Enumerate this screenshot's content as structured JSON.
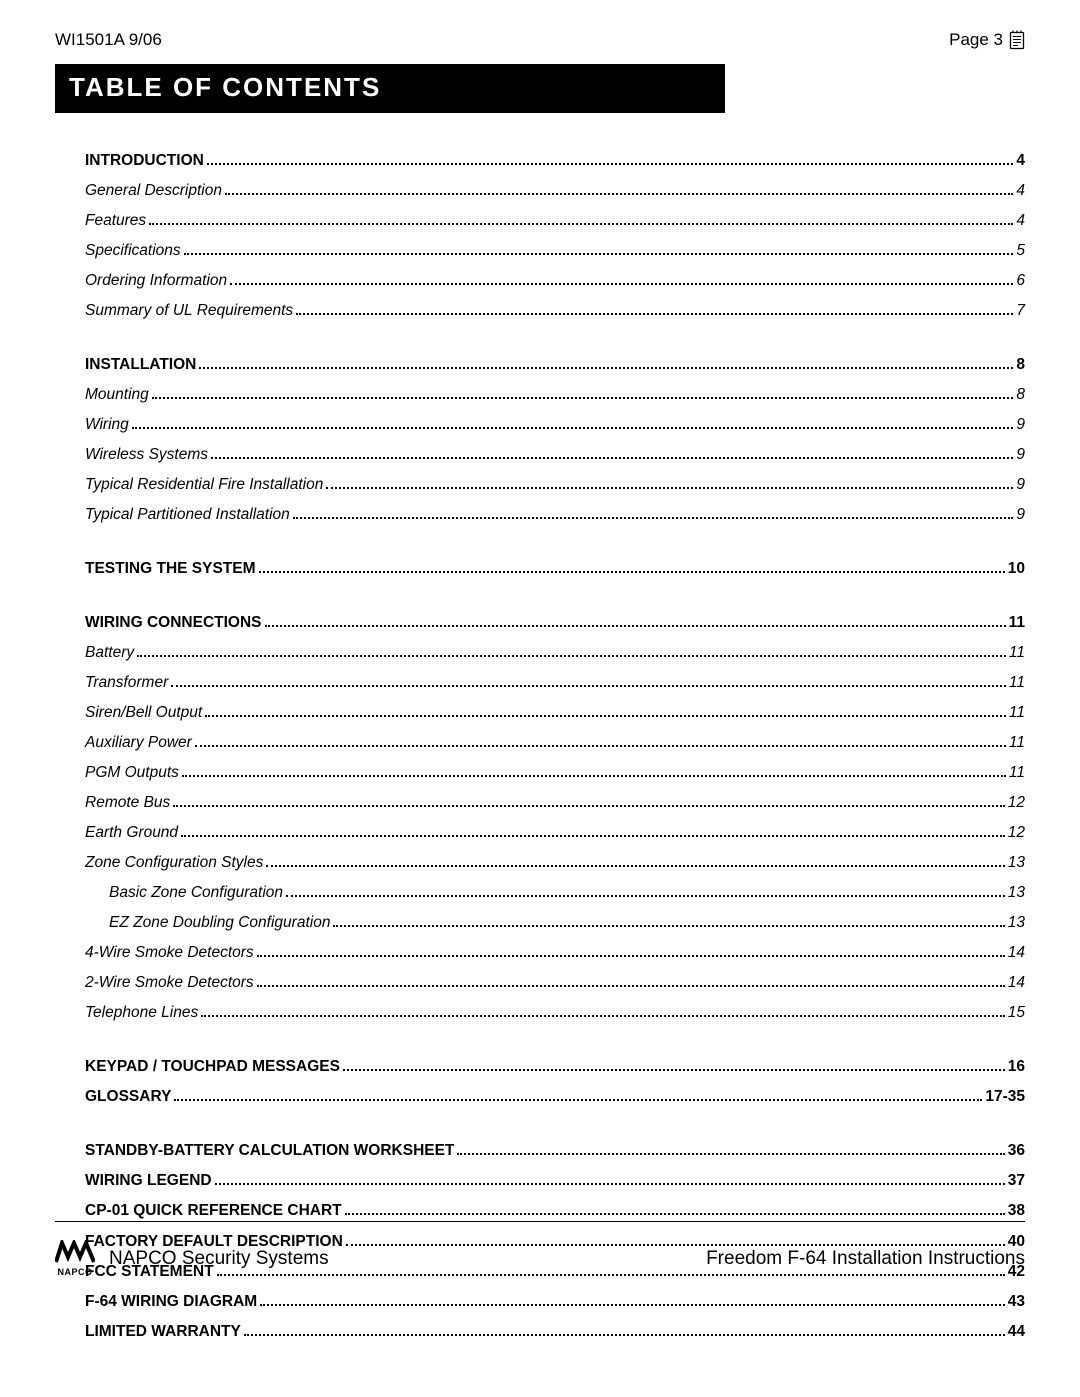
{
  "header": {
    "doc_id": "WI1501A  9/06",
    "page_label": "Page 3"
  },
  "title": "TABLE OF CONTENTS",
  "toc_groups": [
    {
      "rows": [
        {
          "label": "INTRODUCTION",
          "page": "4",
          "style": "heading",
          "indent": 0
        },
        {
          "label": "General Description",
          "page": "4",
          "style": "sub",
          "indent": 0
        },
        {
          "label": "Features",
          "page": "4",
          "style": "sub",
          "indent": 0
        },
        {
          "label": "Specifications",
          "page": "5",
          "style": "sub",
          "indent": 0
        },
        {
          "label": "Ordering Information",
          "page": "6",
          "style": "sub",
          "indent": 0
        },
        {
          "label": "Summary of UL Requirements",
          "page": "7",
          "style": "sub",
          "indent": 0
        }
      ]
    },
    {
      "rows": [
        {
          "label": "INSTALLATION",
          "page": "8",
          "style": "heading",
          "indent": 0
        },
        {
          "label": "Mounting",
          "page": "8",
          "style": "sub",
          "indent": 0
        },
        {
          "label": "Wiring",
          "page": "9",
          "style": "sub",
          "indent": 0
        },
        {
          "label": "Wireless Systems",
          "page": "9",
          "style": "sub",
          "indent": 0
        },
        {
          "label": "Typical Residential Fire Installation",
          "page": "9",
          "style": "sub",
          "indent": 0
        },
        {
          "label": "Typical Partitioned Installation",
          "page": "9",
          "style": "sub",
          "indent": 0
        }
      ]
    },
    {
      "rows": [
        {
          "label": "TESTING THE SYSTEM",
          "page": "10",
          "style": "heading",
          "indent": 0
        }
      ]
    },
    {
      "rows": [
        {
          "label": "WIRING CONNECTIONS",
          "page": "11",
          "style": "heading",
          "indent": 0
        },
        {
          "label": "Battery",
          "page": "11",
          "style": "sub",
          "indent": 0
        },
        {
          "label": "Transformer",
          "page": "11",
          "style": "sub",
          "indent": 0
        },
        {
          "label": "Siren/Bell Output",
          "page": "11",
          "style": "sub",
          "indent": 0
        },
        {
          "label": "Auxiliary Power",
          "page": "11",
          "style": "sub",
          "indent": 0
        },
        {
          "label": "PGM Outputs",
          "page": "11",
          "style": "sub",
          "indent": 0
        },
        {
          "label": "Remote Bus",
          "page": "12",
          "style": "sub",
          "indent": 0
        },
        {
          "label": "Earth Ground",
          "page": "12",
          "style": "sub",
          "indent": 0
        },
        {
          "label": "Zone Configuration Styles",
          "page": "13",
          "style": "sub",
          "indent": 0
        },
        {
          "label": "Basic Zone Configuration",
          "page": "13",
          "style": "sub",
          "indent": 1
        },
        {
          "label": "EZ Zone Doubling Configuration",
          "page": "13",
          "style": "sub",
          "indent": 1
        },
        {
          "label": "4-Wire Smoke Detectors",
          "page": "14",
          "style": "sub",
          "indent": 0
        },
        {
          "label": "2-Wire Smoke Detectors",
          "page": "14",
          "style": "sub",
          "indent": 0
        },
        {
          "label": "Telephone Lines",
          "page": "15",
          "style": "sub",
          "indent": 0
        }
      ]
    },
    {
      "rows": [
        {
          "label": "KEYPAD / TOUCHPAD MESSAGES",
          "page": "16",
          "style": "heading",
          "indent": 0
        },
        {
          "label": "GLOSSARY",
          "page": "17-35",
          "style": "heading",
          "indent": 0
        }
      ]
    },
    {
      "rows": [
        {
          "label": "STANDBY-BATTERY CALCULATION WORKSHEET",
          "page": "36",
          "style": "heading",
          "indent": 0
        },
        {
          "label": "WIRING LEGEND",
          "page": "37",
          "style": "heading",
          "indent": 0
        },
        {
          "label": "CP-01 QUICK REFERENCE CHART",
          "page": "38",
          "style": "heading",
          "indent": 0
        },
        {
          "label": "FACTORY DEFAULT DESCRIPTION",
          "page": "40",
          "style": "heading",
          "indent": 0
        },
        {
          "label": "FCC STATEMENT",
          "page": "42",
          "style": "heading",
          "indent": 0
        },
        {
          "label": "F-64 WIRING DIAGRAM",
          "page": "43",
          "style": "heading",
          "indent": 0
        },
        {
          "label": "LIMITED WARRANTY",
          "page": "44",
          "style": "heading",
          "indent": 0
        }
      ]
    }
  ],
  "footer": {
    "company": "NAPCO Security Systems",
    "logo_text": "NAPCO",
    "product": "Freedom F-64 Installation Instructions"
  },
  "colors": {
    "text": "#000000",
    "bg": "#ffffff",
    "title_bg": "#000000",
    "title_fg": "#ffffff"
  }
}
